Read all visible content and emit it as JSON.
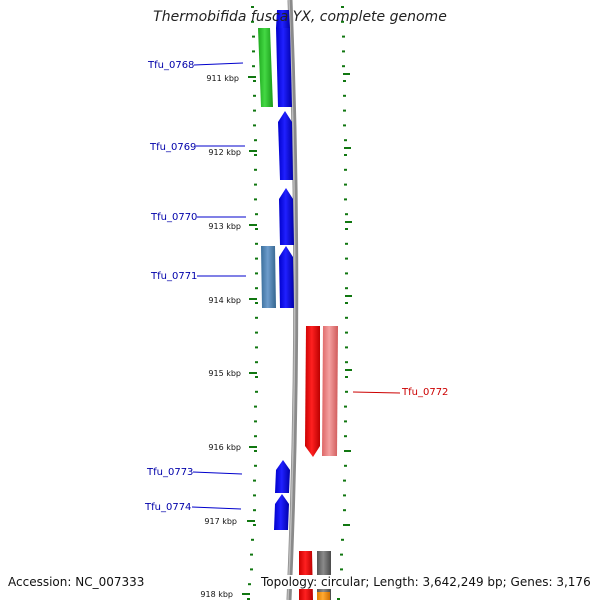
{
  "title": "Thermobifida fusca YX, complete genome",
  "footer": {
    "accession_label": "Accession:",
    "accession": "NC_007333",
    "topology_label": "Topology:",
    "topology": "circular;",
    "length_label": "Length:",
    "length": "3,642,249 bp;",
    "genes_label": "Genes:",
    "genes": "3,176"
  },
  "colors": {
    "forward_cds": "#0000ee",
    "reverse_cds": "#ee0000",
    "forward_feature_green": "#22bb22",
    "forward_feature_steel": "#4682b4",
    "reverse_feature_pink": "#ee7777",
    "reverse_feature_grey": "#777777",
    "reverse_feature_orange": "#ff9900",
    "ruler": "#117711",
    "backbone": "#808080",
    "forward_label": "#0000aa",
    "reverse_label": "#cc0000"
  },
  "ruler_ticks": [
    "911 kbp",
    "912 kbp",
    "913 kbp",
    "914 kbp",
    "915 kbp",
    "916 kbp",
    "917 kbp",
    "918 kbp"
  ],
  "gene_labels": [
    {
      "name": "Tfu_0768",
      "strand": "forward"
    },
    {
      "name": "Tfu_0769",
      "strand": "forward"
    },
    {
      "name": "Tfu_0770",
      "strand": "forward"
    },
    {
      "name": "Tfu_0771",
      "strand": "forward"
    },
    {
      "name": "Tfu_0772",
      "strand": "reverse"
    },
    {
      "name": "Tfu_0773",
      "strand": "forward"
    },
    {
      "name": "Tfu_0774",
      "strand": "forward"
    }
  ]
}
